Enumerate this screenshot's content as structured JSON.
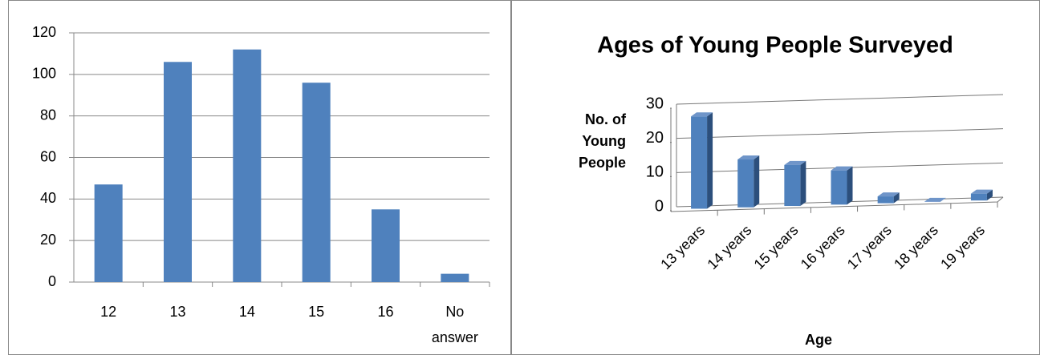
{
  "chart_data": [
    {
      "type": "bar",
      "categories": [
        "12",
        "13",
        "14",
        "15",
        "16",
        "No answer"
      ],
      "values": [
        47,
        106,
        112,
        96,
        35,
        4
      ],
      "color": "#4f81bd",
      "ylim": [
        0,
        120
      ],
      "yticks": [
        0,
        20,
        40,
        60,
        80,
        100,
        120
      ],
      "grid": true
    },
    {
      "type": "bar3d",
      "title": "Ages of Young People Surveyed",
      "y_label": "No. of Young People",
      "x_label": "Age",
      "categories": [
        "13 years",
        "14 years",
        "15 years",
        "16 years",
        "17 years",
        "18 years",
        "19 years"
      ],
      "values": [
        27,
        14,
        12,
        10,
        2,
        0,
        2
      ],
      "color": "#4f81bd",
      "ylim": [
        0,
        30
      ],
      "yticks": [
        0,
        10,
        20,
        30
      ],
      "grid": true
    }
  ]
}
